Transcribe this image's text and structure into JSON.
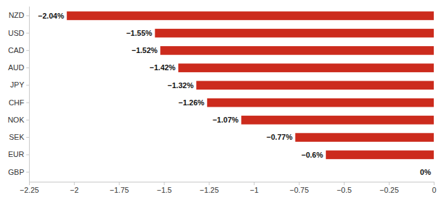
{
  "chart_data": {
    "type": "bar",
    "orientation": "horizontal",
    "categories": [
      "NZD",
      "USD",
      "CAD",
      "AUD",
      "JPY",
      "CHF",
      "NOK",
      "SEK",
      "EUR",
      "GBP"
    ],
    "values": [
      -2.04,
      -1.55,
      -1.52,
      -1.42,
      -1.32,
      -1.26,
      -1.07,
      -0.77,
      -0.6,
      0
    ],
    "value_labels": [
      "−2.04%",
      "−1.55%",
      "−1.52%",
      "−1.42%",
      "−1.32%",
      "−1.26%",
      "−1.07%",
      "−0.77%",
      "−0.6%",
      "0%"
    ],
    "color": "#cc2b1d",
    "data_labels": true,
    "grid": false,
    "xlim": [
      -2.25,
      0
    ],
    "xticks": [
      {
        "value": -2.25,
        "label": "−2.25"
      },
      {
        "value": -2,
        "label": "−2"
      },
      {
        "value": -1.75,
        "label": "−1.75"
      },
      {
        "value": -1.5,
        "label": "−1.5"
      },
      {
        "value": -1.25,
        "label": "−1.25"
      },
      {
        "value": -1,
        "label": "−1"
      },
      {
        "value": -0.75,
        "label": "−0.75"
      },
      {
        "value": -0.5,
        "label": "−0.5"
      },
      {
        "value": -0.25,
        "label": "−0.25"
      },
      0
    ]
  }
}
